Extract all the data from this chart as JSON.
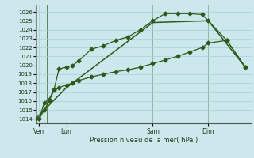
{
  "xlabel": "Pression niveau de la mer( hPa )",
  "background_color": "#cce8ec",
  "grid_color": "#a8d0d4",
  "line_color": "#2d5a1b",
  "vline_color": "#2d5a1b",
  "ylim": [
    1013.5,
    1026.8
  ],
  "xlim": [
    0,
    17.5
  ],
  "yticks": [
    1014,
    1015,
    1016,
    1017,
    1018,
    1019,
    1020,
    1021,
    1022,
    1023,
    1024,
    1025,
    1026
  ],
  "day_labels": [
    "Ven",
    "Lun",
    "Sam",
    "Dim"
  ],
  "day_positions": [
    0.3,
    2.5,
    9.5,
    14.0
  ],
  "vline_positions": [
    0.9,
    2.5,
    9.5,
    14.0
  ],
  "line1_x": [
    0.0,
    0.3,
    0.7,
    1.1,
    1.5,
    1.9,
    2.5,
    3.0,
    3.5,
    4.5,
    5.5,
    6.5,
    7.5,
    8.5,
    9.5,
    10.5,
    11.5,
    12.5,
    13.5,
    14.0,
    15.5,
    17.0
  ],
  "line1_y": [
    1014.0,
    1014.0,
    1015.8,
    1016.2,
    1017.3,
    1019.6,
    1019.8,
    1020.0,
    1020.5,
    1021.8,
    1022.2,
    1022.8,
    1023.2,
    1024.0,
    1025.0,
    1025.8,
    1025.8,
    1025.8,
    1025.7,
    1025.0,
    1022.8,
    1019.8
  ],
  "line2_x": [
    0.0,
    0.3,
    0.7,
    1.1,
    1.5,
    1.9,
    2.5,
    3.0,
    3.5,
    4.5,
    5.5,
    6.5,
    7.5,
    8.5,
    9.5,
    10.5,
    11.5,
    12.5,
    13.5,
    14.0,
    15.5,
    17.0
  ],
  "line2_y": [
    1014.0,
    1014.0,
    1015.0,
    1016.0,
    1017.2,
    1017.5,
    1017.8,
    1018.0,
    1018.3,
    1018.7,
    1019.0,
    1019.3,
    1019.5,
    1019.8,
    1020.2,
    1020.6,
    1021.0,
    1021.5,
    1022.0,
    1022.5,
    1022.8,
    1019.8
  ],
  "line3_x": [
    0.0,
    2.5,
    9.5,
    14.0,
    17.0
  ],
  "line3_y": [
    1014.0,
    1017.5,
    1024.8,
    1025.0,
    1019.8
  ]
}
